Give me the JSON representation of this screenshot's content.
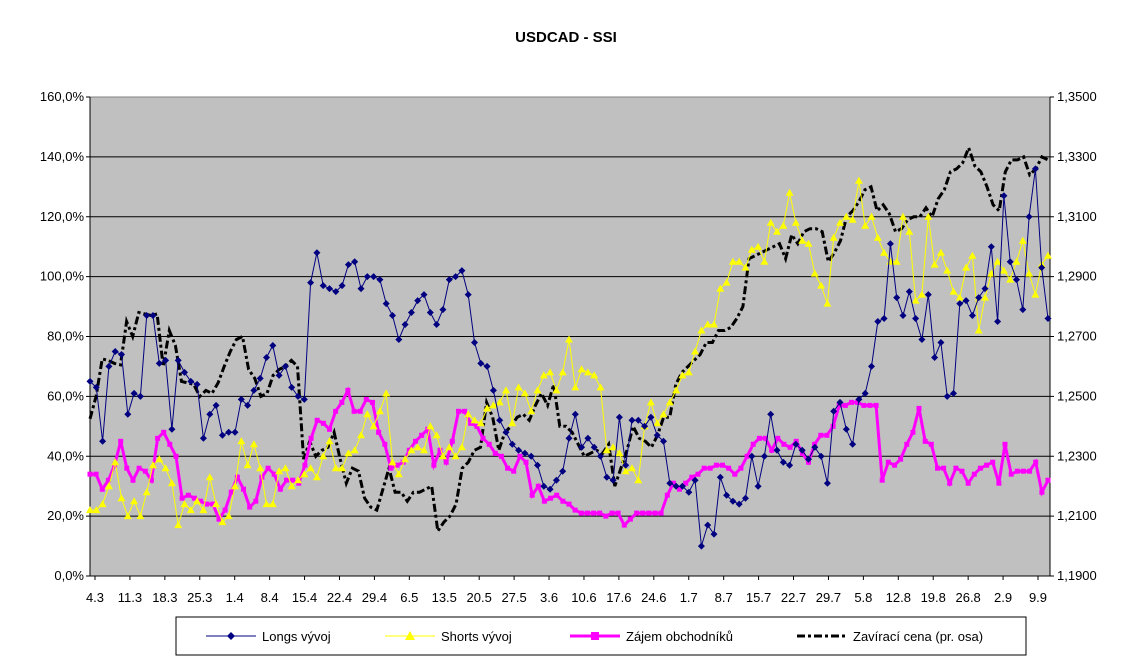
{
  "chart_data": {
    "type": "line",
    "title": "USDCAD - SSI",
    "x_tick_labels": [
      "4.3",
      "11.3",
      "18.3",
      "25.3",
      "1.4",
      "8.4",
      "15.4",
      "22.4",
      "29.4",
      "6.5",
      "13.5",
      "20.5",
      "27.5",
      "3.6",
      "10.6",
      "17.6",
      "24.6",
      "1.7",
      "8.7",
      "15.7",
      "22.7",
      "29.7",
      "5.8",
      "12.8",
      "19.8",
      "26.8",
      "2.9",
      "9.9"
    ],
    "y_left": {
      "min": 0,
      "max": 160,
      "step": 20,
      "tick_labels": [
        "0,0%",
        "20,0%",
        "40,0%",
        "60,0%",
        "80,0%",
        "100,0%",
        "120,0%",
        "140,0%",
        "160,0%"
      ]
    },
    "y_right": {
      "min": 1.19,
      "max": 1.35,
      "step": 0.02,
      "tick_labels": [
        "1,1900",
        "1,2100",
        "1,2300",
        "1,2500",
        "1,2700",
        "1,2900",
        "1,3100",
        "1,3300",
        "1,3500"
      ]
    },
    "grid": true,
    "legend_position": "bottom",
    "colors": {
      "plot_bg": "#c0c0c0",
      "longs": "#000080",
      "shorts": "#ffff00",
      "zajem": "#ff00ff",
      "close": "#000000"
    },
    "series": [
      {
        "name": "Longs vývoj",
        "axis": "left",
        "values": [
          65,
          63,
          45,
          70,
          75,
          74,
          54,
          61,
          60,
          87,
          87,
          71,
          72,
          49,
          72,
          68,
          65,
          64,
          46,
          54,
          57,
          47,
          48,
          48,
          59,
          57,
          62,
          66,
          73,
          77,
          67,
          70,
          63,
          60,
          59,
          98,
          108,
          97,
          96,
          95,
          97,
          104,
          105,
          96,
          100,
          100,
          99,
          91,
          87,
          79,
          84,
          88,
          92,
          94,
          88,
          84,
          89,
          99,
          100,
          102,
          94,
          78,
          71,
          70,
          62,
          52,
          48,
          44,
          42,
          41,
          40,
          37,
          30,
          29,
          32,
          35,
          46,
          54,
          43,
          46,
          43,
          40,
          33,
          32,
          53,
          37,
          52,
          52,
          50,
          53,
          47,
          45,
          31,
          30,
          30,
          28,
          32,
          10,
          17,
          14,
          33,
          27,
          25,
          24,
          26,
          40,
          30,
          40,
          54,
          42,
          38,
          37,
          44,
          42,
          39,
          43,
          40,
          31,
          55,
          58,
          49,
          44,
          59,
          61,
          70,
          85,
          86,
          111,
          93,
          87,
          95,
          86,
          79,
          94,
          73,
          78,
          60,
          61,
          91,
          92,
          87,
          93,
          96,
          110,
          85,
          127,
          105,
          99,
          89,
          120,
          136,
          103,
          86
        ]
      },
      {
        "name": "Shorts vývoj",
        "axis": "left",
        "values": [
          22,
          22,
          24,
          30,
          38,
          26,
          20,
          25,
          20,
          28,
          37,
          39,
          36,
          31,
          17,
          24,
          22,
          25,
          22,
          33,
          24,
          18,
          20,
          30,
          45,
          37,
          44,
          36,
          24,
          24,
          35,
          36,
          30,
          32,
          34,
          36,
          33,
          40,
          45,
          36,
          36,
          41,
          42,
          47,
          54,
          50,
          55,
          61,
          38,
          34,
          39,
          42,
          43,
          42,
          50,
          47,
          40,
          43,
          40,
          43,
          54,
          52,
          51,
          56,
          57,
          58,
          62,
          51,
          63,
          61,
          55,
          62,
          67,
          68,
          62,
          68,
          79,
          63,
          69,
          68,
          67,
          63,
          42,
          43,
          41,
          35,
          36,
          32,
          50,
          58,
          51,
          54,
          58,
          62,
          67,
          68,
          75,
          82,
          84,
          84,
          96,
          98,
          105,
          105,
          103,
          109,
          110,
          105,
          118,
          115,
          117,
          128,
          118,
          112,
          111,
          101,
          97,
          91,
          113,
          118,
          120,
          119,
          132,
          117,
          120,
          113,
          108,
          105,
          105,
          120,
          115,
          92,
          94,
          120,
          104,
          108,
          102,
          95,
          93,
          103,
          107,
          82,
          93,
          101,
          105,
          102,
          99,
          105,
          112,
          101,
          94,
          104,
          107
        ]
      },
      {
        "name": "Zájem obchodníků",
        "axis": "left",
        "values": [
          34,
          34,
          29,
          32,
          37,
          45,
          36,
          32,
          36,
          35,
          32,
          46,
          48,
          44,
          40,
          26,
          27,
          26,
          25,
          24,
          24,
          19,
          22,
          28,
          33,
          29,
          23,
          25,
          33,
          36,
          34,
          29,
          32,
          32,
          31,
          37,
          46,
          52,
          51,
          49,
          55,
          58,
          62,
          55,
          55,
          59,
          58,
          48,
          44,
          36,
          37,
          38,
          42,
          45,
          47,
          49,
          37,
          42,
          38,
          45,
          55,
          55,
          51,
          50,
          46,
          44,
          41,
          40,
          36,
          35,
          40,
          38,
          27,
          30,
          25,
          26,
          27,
          25,
          24,
          22,
          21,
          21,
          21,
          21,
          20,
          21,
          21,
          17,
          19,
          21,
          21,
          21,
          21,
          21,
          27,
          31,
          29,
          31,
          33,
          34,
          36,
          36,
          37,
          37,
          36,
          34,
          36,
          40,
          44,
          46,
          46,
          42,
          46,
          44,
          43,
          45,
          41,
          38,
          44,
          47,
          47,
          50,
          57,
          57,
          58,
          58,
          57,
          57,
          57,
          32,
          38,
          37,
          39,
          44,
          48,
          56,
          45,
          44,
          36,
          36,
          31,
          36,
          35,
          31,
          34,
          36,
          37,
          38,
          31,
          44,
          34,
          35,
          35,
          35,
          38,
          28,
          32
        ]
      },
      {
        "name": "Zavírací cena (pr. osa)",
        "axis": "right",
        "values": [
          1.2425,
          1.25,
          1.2625,
          1.262,
          1.261,
          1.2605,
          1.275,
          1.27,
          1.278,
          1.2775,
          1.277,
          1.2775,
          1.26,
          1.272,
          1.267,
          1.255,
          1.2545,
          1.254,
          1.25,
          1.252,
          1.251,
          1.2545,
          1.26,
          1.265,
          1.269,
          1.27,
          1.259,
          1.256,
          1.25,
          1.251,
          1.257,
          1.259,
          1.26,
          1.262,
          1.26,
          1.229,
          1.235,
          1.23,
          1.232,
          1.233,
          1.238,
          1.229,
          1.221,
          1.226,
          1.225,
          1.216,
          1.213,
          1.212,
          1.219,
          1.226,
          1.218,
          1.218,
          1.215,
          1.218,
          1.218,
          1.219,
          1.22,
          1.205,
          1.208,
          1.21,
          1.214,
          1.226,
          1.228,
          1.232,
          1.233,
          1.248,
          1.243,
          1.232,
          1.238,
          1.24,
          1.243,
          1.244,
          1.242,
          1.247,
          1.251,
          1.247,
          1.254,
          1.24,
          1.24,
          1.238,
          1.234,
          1.23,
          1.231,
          1.232,
          1.231,
          1.234,
          1.22,
          1.226,
          1.232,
          1.24,
          1.236,
          1.235,
          1.233,
          1.237,
          1.243,
          1.243,
          1.254,
          1.258,
          1.26,
          1.262,
          1.264,
          1.268,
          1.268,
          1.272,
          1.272,
          1.273,
          1.276,
          1.28,
          1.296,
          1.297,
          1.298,
          1.299,
          1.3,
          1.301,
          1.296,
          1.304,
          1.301,
          1.305,
          1.306,
          1.306,
          1.305,
          1.295,
          1.298,
          1.302,
          1.31,
          1.312,
          1.315,
          1.319,
          1.32,
          1.312,
          1.314,
          1.311,
          1.305,
          1.306,
          1.309,
          1.31,
          1.31,
          1.313,
          1.31,
          1.316,
          1.319,
          1.325,
          1.326,
          1.328,
          1.333,
          1.327,
          1.325,
          1.32,
          1.314,
          1.312,
          1.325,
          1.329,
          1.329,
          1.33,
          1.324,
          1.326,
          1.33,
          1.329
        ]
      }
    ]
  }
}
